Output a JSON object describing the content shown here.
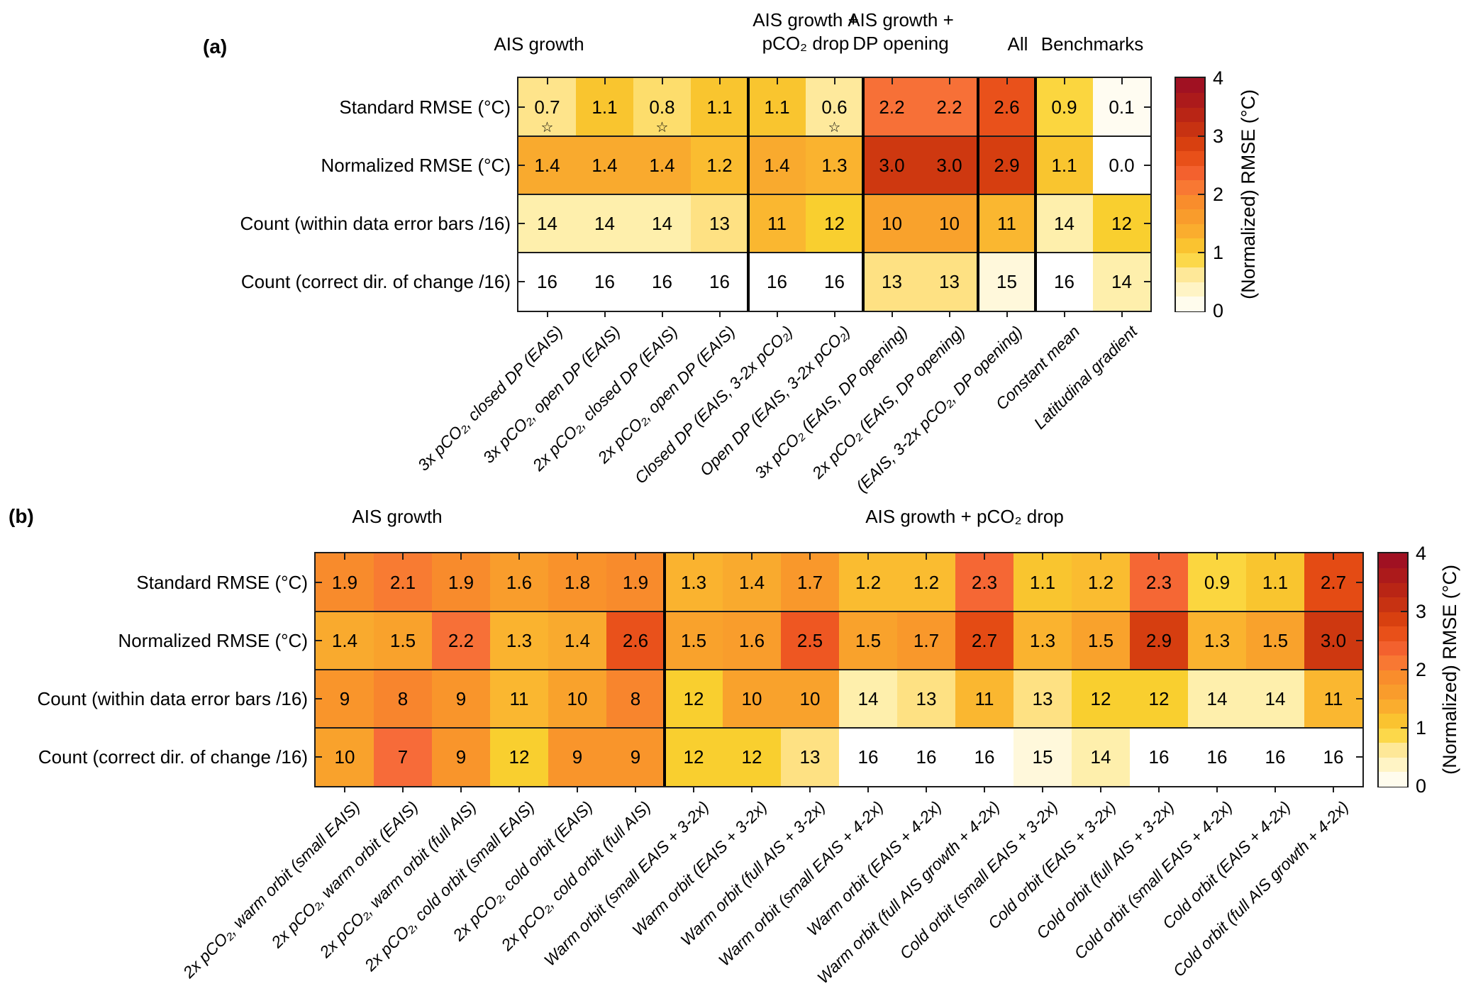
{
  "chart_data": [
    {
      "id": "panel-a",
      "type": "heatmap",
      "panel_label": "(a)",
      "rows": [
        "Standard RMSE (°C)",
        "Normalized RMSE (°C)",
        "Count (within data error bars /16)",
        "Count (correct dir. of change /16)"
      ],
      "row_types": [
        "rmse",
        "rmse",
        "count",
        "count"
      ],
      "columns": [
        "3x pCO₂, closed DP (EAIS)",
        "3x pCO₂, open DP (EAIS)",
        "2x pCO₂, closed DP (EAIS)",
        "2x pCO₂, open DP (EAIS)",
        "Closed DP (EAIS, 3-2x pCO₂)",
        "Open DP (EAIS, 3-2x pCO₂)",
        "3x pCO₂ (EAIS, DP opening)",
        "2x pCO₂ (EAIS, DP opening)",
        "(EAIS, 3-2x pCO₂, DP opening)",
        "Constant mean",
        "Latitudinal gradient"
      ],
      "column_groups": [
        {
          "lines": [
            "AIS growth"
          ],
          "span": 4
        },
        {
          "lines": [
            "AIS growth +",
            "pCO₂ drop"
          ],
          "span": 2
        },
        {
          "lines": [
            "AIS growth +",
            "DP opening"
          ],
          "span": 2
        },
        {
          "lines": [
            "All"
          ],
          "span": 1
        },
        {
          "lines": [
            "Benchmarks"
          ],
          "span": 2
        }
      ],
      "values": [
        [
          "0.7",
          "1.1",
          "0.8",
          "1.1",
          "1.1",
          "0.6",
          "2.2",
          "2.2",
          "2.6",
          "0.9",
          "0.1"
        ],
        [
          "1.4",
          "1.4",
          "1.4",
          "1.2",
          "1.4",
          "1.3",
          "3.0",
          "3.0",
          "2.9",
          "1.1",
          "0.0"
        ],
        [
          "14",
          "14",
          "14",
          "13",
          "11",
          "12",
          "10",
          "10",
          "11",
          "14",
          "12"
        ],
        [
          "16",
          "16",
          "16",
          "16",
          "16",
          "16",
          "13",
          "13",
          "15",
          "16",
          "14"
        ]
      ],
      "starred_cells": [
        [
          0,
          0
        ],
        [
          0,
          2
        ],
        [
          0,
          5
        ]
      ],
      "group_separators_after": [
        3,
        5,
        7,
        8
      ]
    },
    {
      "id": "panel-b",
      "type": "heatmap",
      "panel_label": "(b)",
      "rows": [
        "Standard RMSE (°C)",
        "Normalized RMSE (°C)",
        "Count (within data error bars /16)",
        "Count (correct dir. of change /16)"
      ],
      "row_types": [
        "rmse",
        "rmse",
        "count",
        "count"
      ],
      "columns": [
        "2x pCO₂, warm orbit (small EAIS)",
        "2x pCO₂, warm orbit (EAIS)",
        "2x pCO₂, warm orbit (full AIS)",
        "2x pCO₂, cold orbit (small EAIS)",
        "2x pCO₂, cold orbit (EAIS)",
        "2x pCO₂, cold orbit (full AIS)",
        "Warm orbit (small EAIS + 3-2x)",
        "Warm orbit (EAIS + 3-2x)",
        "Warm orbit (full AIS + 3-2x)",
        "Warm orbit (small EAIS + 4-2x)",
        "Warm orbit (EAIS + 4-2x)",
        "Warm orbit (full AIS growth + 4-2x)",
        "Cold orbit (small EAIS + 3-2x)",
        "Cold orbit (EAIS + 3-2x)",
        "Cold orbit (full AIS + 3-2x)",
        "Cold orbit (small EAIS + 4-2x)",
        "Cold orbit (EAIS + 4-2x)",
        "Cold orbit (full AIS growth + 4-2x)"
      ],
      "column_groups": [
        {
          "lines": [
            "AIS growth"
          ],
          "span": 6
        },
        {
          "lines": [
            "AIS growth + pCO₂ drop"
          ],
          "span": 12
        }
      ],
      "values": [
        [
          "1.9",
          "2.1",
          "1.9",
          "1.6",
          "1.8",
          "1.9",
          "1.3",
          "1.4",
          "1.7",
          "1.2",
          "1.2",
          "2.3",
          "1.1",
          "1.2",
          "2.3",
          "0.9",
          "1.1",
          "2.7"
        ],
        [
          "1.4",
          "1.5",
          "2.2",
          "1.3",
          "1.4",
          "2.6",
          "1.5",
          "1.6",
          "2.5",
          "1.5",
          "1.7",
          "2.7",
          "1.3",
          "1.5",
          "2.9",
          "1.3",
          "1.5",
          "3.0"
        ],
        [
          "9",
          "8",
          "9",
          "11",
          "10",
          "8",
          "12",
          "10",
          "10",
          "14",
          "13",
          "11",
          "13",
          "12",
          "12",
          "14",
          "14",
          "11"
        ],
        [
          "10",
          "7",
          "9",
          "12",
          "9",
          "9",
          "12",
          "12",
          "13",
          "16",
          "16",
          "16",
          "15",
          "14",
          "16",
          "16",
          "16",
          "16"
        ]
      ],
      "starred_cells": [],
      "group_separators_after": [
        5
      ]
    }
  ],
  "colorbar": {
    "label": "(Normalized) RMSE (°C)",
    "ticks": [
      "0",
      "1",
      "2",
      "3",
      "4"
    ],
    "min": 0,
    "max": 4,
    "colormap_stops": [
      [
        0.0,
        "#ffffff"
      ],
      [
        0.3,
        "#fff7d4"
      ],
      [
        0.5,
        "#feefac"
      ],
      [
        0.75,
        "#fee183"
      ],
      [
        0.9,
        "#fbd63f"
      ],
      [
        1.0,
        "#f9cf2f"
      ],
      [
        1.25,
        "#fab730"
      ],
      [
        1.5,
        "#f9a22c"
      ],
      [
        1.75,
        "#f9952b"
      ],
      [
        2.0,
        "#f8852d"
      ],
      [
        2.25,
        "#f76b39"
      ],
      [
        2.5,
        "#ee5722"
      ],
      [
        2.75,
        "#e24810"
      ],
      [
        3.0,
        "#ce3810"
      ],
      [
        3.5,
        "#b21f17"
      ],
      [
        4.0,
        "#9a0c25"
      ]
    ]
  },
  "count_scale": {
    "max_count": 16,
    "divisor": 4
  },
  "star_icon_glyph": "☆"
}
